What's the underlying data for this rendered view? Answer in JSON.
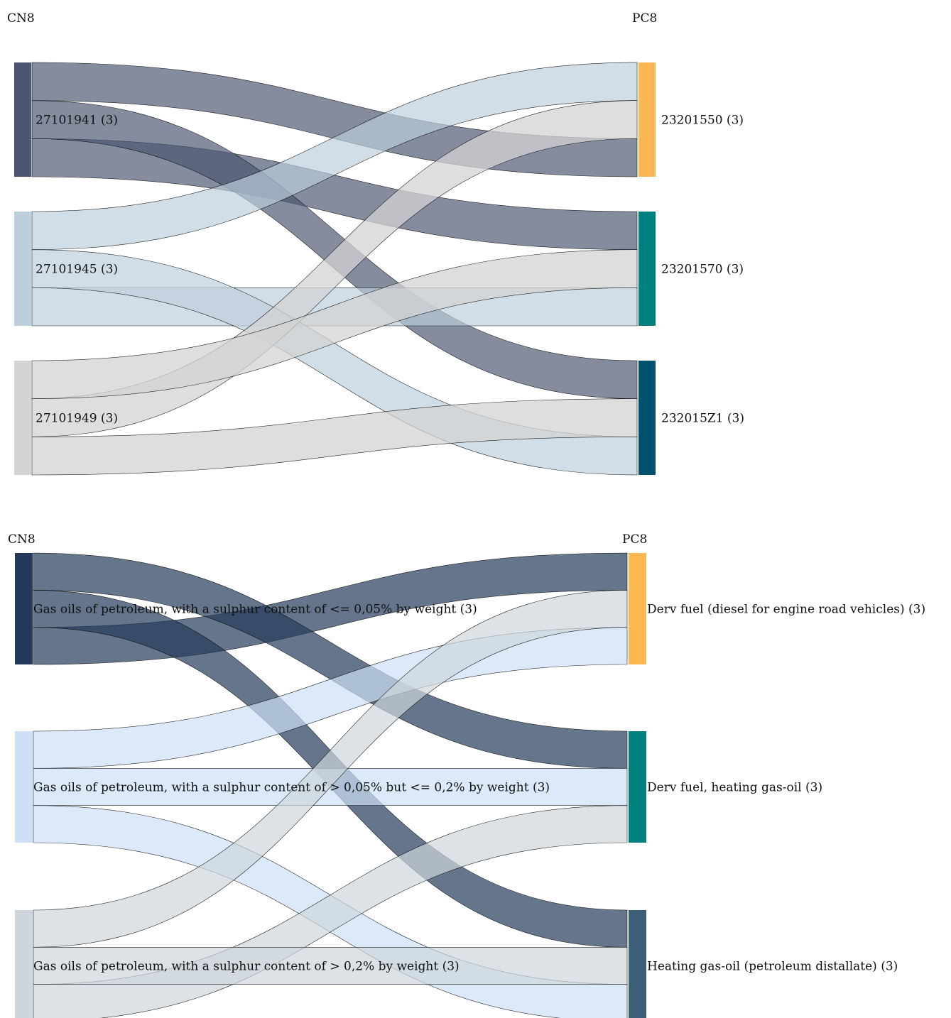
{
  "diagrams": [
    {
      "id": "codes",
      "left_header": "CN8",
      "right_header": "PC8",
      "sources": [
        {
          "label": "27101941 (3)",
          "color": "#4a5670",
          "link_color": "#4a5670",
          "link_opacity": 0.68
        },
        {
          "label": "27101945 (3)",
          "color": "#bccfdc",
          "link_color": "#bccfdc",
          "link_opacity": 0.68
        },
        {
          "label": "27101949 (3)",
          "color": "#d3d3d3",
          "link_color": "#d3d3d3",
          "link_opacity": 0.75
        }
      ],
      "targets": [
        {
          "label": "23201550 (3)",
          "color": "#fbb751"
        },
        {
          "label": "23201570 (3)",
          "color": "#008080"
        },
        {
          "label": "232015Z1 (3)",
          "color": "#005070"
        }
      ],
      "links": [
        [
          0,
          0,
          1
        ],
        [
          0,
          1,
          1
        ],
        [
          0,
          2,
          1
        ],
        [
          1,
          0,
          1
        ],
        [
          1,
          1,
          1
        ],
        [
          1,
          2,
          1
        ],
        [
          2,
          0,
          1
        ],
        [
          2,
          1,
          1
        ],
        [
          2,
          2,
          1
        ]
      ],
      "source_slot_order": [
        [
          0,
          2,
          1
        ],
        [
          0,
          2,
          1
        ],
        [
          1,
          0,
          2
        ]
      ],
      "target_slot_order": [
        [
          1,
          2,
          0
        ],
        [
          0,
          2,
          1
        ],
        [
          0,
          2,
          1
        ]
      ]
    },
    {
      "id": "descriptions",
      "left_header": "CN8",
      "right_header": "PC8",
      "sources": [
        {
          "label": "Gas oils of petroleum, with a sulphur content of <= 0,05% by weight (3)",
          "color": "#243a5a",
          "link_color": "#243a5a",
          "link_opacity": 0.7
        },
        {
          "label": "Gas oils of petroleum, with a sulphur content of > 0,05% but <= 0,2% by weight (3)",
          "color": "#cde0f5",
          "link_color": "#cde0f5",
          "link_opacity": 0.7
        },
        {
          "label": "Gas oils of petroleum, with a sulphur content of > 0,2% by weight (3)",
          "color": "#cdd6dc",
          "link_color": "#cdd6dc",
          "link_opacity": 0.7
        }
      ],
      "targets": [
        {
          "label": "Derv fuel (diesel for engine road vehicles) (3)",
          "color": "#fbb751"
        },
        {
          "label": "Derv fuel, heating gas-oil (3)",
          "color": "#008080"
        },
        {
          "label": "Heating gas-oil (petroleum distallate) (3)",
          "color": "#3d5e78"
        }
      ],
      "links": [
        [
          0,
          0,
          1
        ],
        [
          0,
          1,
          1
        ],
        [
          0,
          2,
          1
        ],
        [
          1,
          0,
          1
        ],
        [
          1,
          1,
          1
        ],
        [
          1,
          2,
          1
        ],
        [
          2,
          0,
          1
        ],
        [
          2,
          1,
          1
        ],
        [
          2,
          2,
          1
        ]
      ],
      "source_slot_order": [
        [
          1,
          2,
          0
        ],
        [
          0,
          1,
          2
        ],
        [
          0,
          2,
          1
        ]
      ],
      "target_slot_order": [
        [
          0,
          2,
          1
        ],
        [
          0,
          1,
          2
        ],
        [
          0,
          2,
          1
        ]
      ]
    }
  ]
}
